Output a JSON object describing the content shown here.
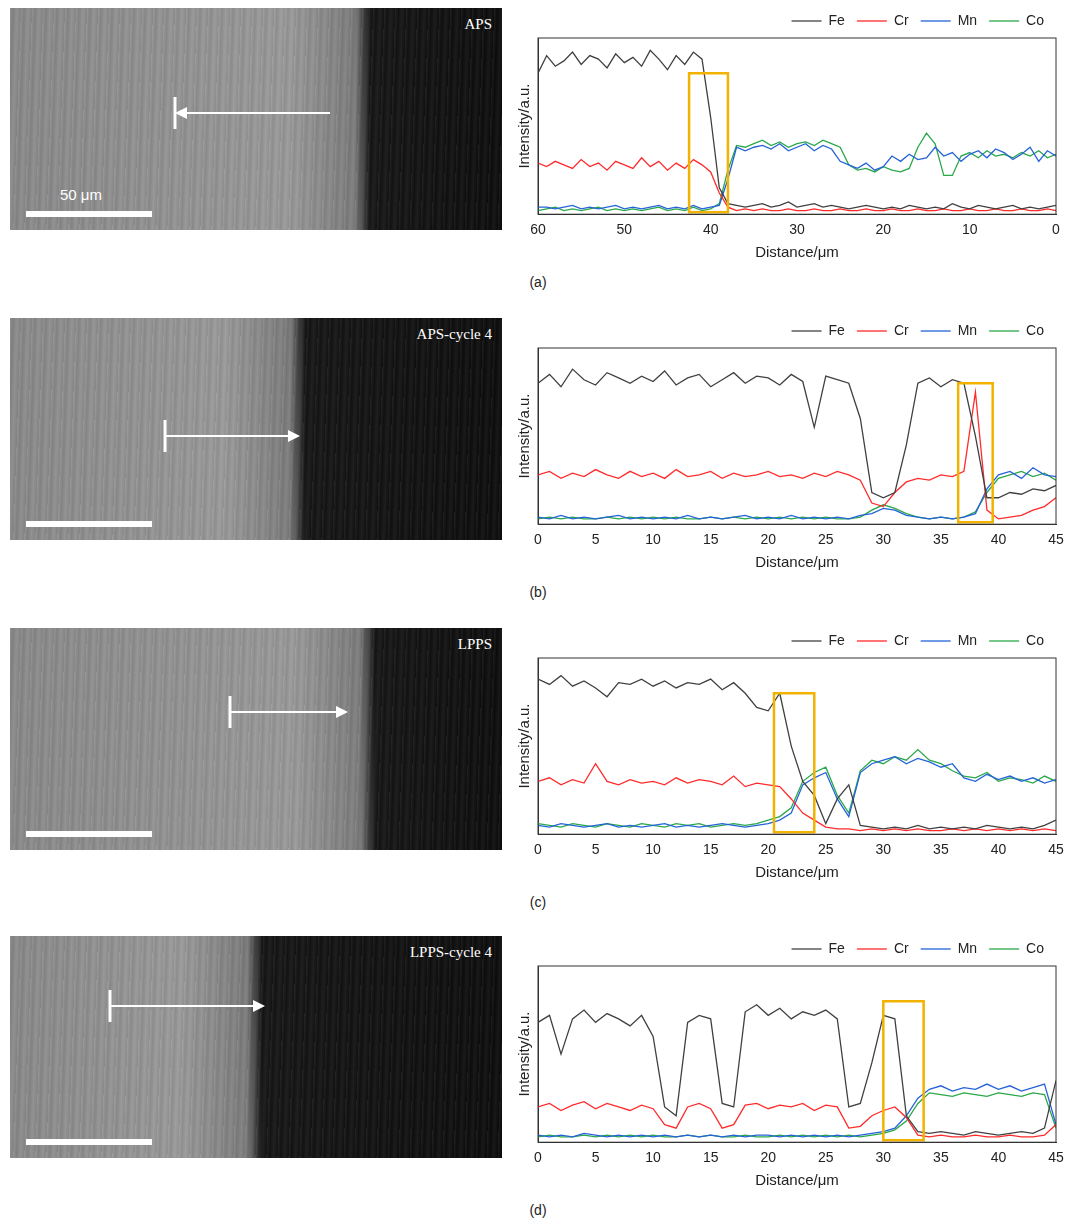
{
  "panel_labels": [
    "(a)",
    "(b)",
    "(c)",
    "(d)"
  ],
  "images": [
    {
      "caption": "APS",
      "scale_bar": "50 μm"
    },
    {
      "caption": "APS-cycle 4"
    },
    {
      "caption": "LPPS"
    },
    {
      "caption": "LPPS-cycle 4"
    }
  ],
  "chart_data": [
    {
      "type": "line",
      "x_label": "Distance/μm",
      "y_label": "Intensity/a.u.",
      "xlim": [
        60,
        0
      ],
      "xticks": [
        60,
        50,
        40,
        30,
        20,
        10,
        0
      ],
      "ylim": [
        0,
        100
      ],
      "grid": false,
      "legend": "top right",
      "tick_labels": "x",
      "highlight_x": [
        38,
        42.5
      ],
      "x": [
        0,
        1,
        2,
        3,
        4,
        5,
        6,
        7,
        8,
        9,
        10,
        11,
        12,
        13,
        14,
        15,
        16,
        17,
        18,
        19,
        20,
        21,
        22,
        23,
        24,
        25,
        26,
        27,
        28,
        29,
        30,
        31,
        32,
        33,
        34,
        35,
        36,
        37,
        38,
        39,
        40,
        41,
        42,
        43,
        44,
        45,
        46,
        47,
        48,
        49,
        50,
        51,
        52,
        53,
        54,
        55,
        56,
        57,
        58,
        59,
        60
      ],
      "series": [
        {
          "name": "Fe",
          "color": "#404040",
          "values": [
            5,
            4,
            3,
            4,
            3,
            5,
            4,
            3,
            4,
            5,
            3,
            4,
            6,
            3,
            4,
            3,
            4,
            5,
            3,
            4,
            3,
            4,
            5,
            4,
            3,
            4,
            5,
            4,
            6,
            5,
            4,
            7,
            5,
            4,
            6,
            5,
            4,
            5,
            6,
            15,
            55,
            88,
            92,
            85,
            90,
            82,
            88,
            93,
            84,
            89,
            86,
            91,
            83,
            88,
            90,
            85,
            92,
            87,
            84,
            90,
            80
          ]
        },
        {
          "name": "Cr",
          "color": "#ff2a2a",
          "values": [
            2,
            3,
            2,
            2,
            3,
            2,
            2,
            3,
            2,
            2,
            3,
            2,
            2,
            3,
            2,
            2,
            3,
            2,
            2,
            3,
            2,
            2,
            3,
            2,
            2,
            3,
            2,
            2,
            3,
            2,
            2,
            3,
            2,
            2,
            3,
            2,
            3,
            2,
            4,
            12,
            24,
            28,
            31,
            26,
            29,
            25,
            30,
            27,
            32,
            26,
            28,
            30,
            25,
            29,
            27,
            31,
            26,
            28,
            30,
            27,
            29
          ]
        },
        {
          "name": "Mn",
          "color": "#2563d9",
          "values": [
            33,
            36,
            30,
            38,
            34,
            31,
            35,
            37,
            32,
            36,
            34,
            30,
            35,
            33,
            38,
            32,
            31,
            34,
            30,
            33,
            27,
            25,
            29,
            26,
            28,
            30,
            37,
            39,
            36,
            40,
            38,
            36,
            40,
            37,
            39,
            38,
            36,
            38,
            20,
            5,
            4,
            3,
            5,
            3,
            4,
            3,
            5,
            4,
            3,
            4,
            3,
            5,
            4,
            3,
            4,
            3,
            5,
            4,
            3,
            4,
            4
          ]
        },
        {
          "name": "Co",
          "color": "#2aa84a",
          "values": [
            34,
            32,
            36,
            33,
            35,
            32,
            34,
            33,
            36,
            32,
            35,
            33,
            22,
            22,
            40,
            46,
            38,
            26,
            24,
            25,
            27,
            24,
            26,
            25,
            28,
            38,
            40,
            42,
            39,
            41,
            40,
            38,
            41,
            39,
            42,
            40,
            38,
            39,
            25,
            6,
            3,
            2,
            4,
            2,
            3,
            2,
            4,
            3,
            2,
            3,
            2,
            3,
            2,
            4,
            3,
            2,
            3,
            2,
            4,
            3,
            2
          ]
        }
      ]
    },
    {
      "type": "line",
      "x_label": "Distance/μm",
      "y_label": "Intensity/a.u.",
      "xlim": [
        0,
        45
      ],
      "xticks": [
        0,
        5,
        10,
        15,
        20,
        25,
        30,
        35,
        40,
        45
      ],
      "ylim": [
        0,
        100
      ],
      "grid": false,
      "legend": "top right",
      "tick_labels": "x",
      "highlight_x": [
        36.5,
        39.5
      ],
      "x": [
        0,
        1,
        2,
        3,
        4,
        5,
        6,
        7,
        8,
        9,
        10,
        11,
        12,
        13,
        14,
        15,
        16,
        17,
        18,
        19,
        20,
        21,
        22,
        23,
        24,
        25,
        26,
        27,
        28,
        29,
        30,
        31,
        32,
        33,
        34,
        35,
        36,
        37,
        38,
        39,
        40,
        41,
        42,
        43,
        44,
        45
      ],
      "series": [
        {
          "name": "Fe",
          "color": "#404040",
          "values": [
            80,
            85,
            78,
            88,
            82,
            79,
            86,
            83,
            80,
            84,
            81,
            87,
            79,
            83,
            85,
            78,
            82,
            86,
            80,
            84,
            83,
            79,
            85,
            81,
            55,
            84,
            82,
            80,
            60,
            18,
            15,
            18,
            45,
            80,
            83,
            78,
            82,
            80,
            50,
            15,
            15,
            18,
            17,
            20,
            19,
            22
          ]
        },
        {
          "name": "Cr",
          "color": "#ff2a2a",
          "values": [
            28,
            30,
            26,
            29,
            27,
            31,
            28,
            26,
            30,
            27,
            29,
            26,
            31,
            27,
            28,
            30,
            26,
            29,
            27,
            28,
            30,
            27,
            28,
            26,
            29,
            27,
            30,
            28,
            25,
            12,
            10,
            18,
            24,
            26,
            25,
            28,
            27,
            30,
            75,
            8,
            3,
            4,
            5,
            8,
            10,
            15
          ]
        },
        {
          "name": "Mn",
          "color": "#2563d9",
          "values": [
            4,
            3,
            5,
            3,
            4,
            3,
            4,
            5,
            3,
            4,
            3,
            4,
            3,
            5,
            3,
            4,
            3,
            4,
            5,
            3,
            4,
            3,
            5,
            3,
            4,
            3,
            4,
            3,
            5,
            6,
            9,
            8,
            5,
            4,
            3,
            4,
            3,
            4,
            6,
            20,
            28,
            30,
            26,
            32,
            28,
            27
          ]
        },
        {
          "name": "Co",
          "color": "#2aa84a",
          "values": [
            3,
            4,
            3,
            4,
            3,
            3,
            4,
            3,
            4,
            3,
            4,
            3,
            4,
            3,
            3,
            4,
            3,
            4,
            3,
            4,
            3,
            4,
            3,
            4,
            3,
            4,
            3,
            3,
            4,
            8,
            11,
            9,
            6,
            4,
            3,
            4,
            3,
            4,
            7,
            18,
            26,
            28,
            30,
            27,
            29,
            25
          ]
        }
      ]
    },
    {
      "type": "line",
      "x_label": "Distance/μm",
      "y_label": "Intensity/a.u.",
      "xlim": [
        0,
        45
      ],
      "xticks": [
        0,
        5,
        10,
        15,
        20,
        25,
        30,
        35,
        40,
        45
      ],
      "ylim": [
        0,
        100
      ],
      "grid": false,
      "legend": "top right",
      "tick_labels": "x",
      "highlight_x": [
        20.5,
        24
      ],
      "x": [
        0,
        1,
        2,
        3,
        4,
        5,
        6,
        7,
        8,
        9,
        10,
        11,
        12,
        13,
        14,
        15,
        16,
        17,
        18,
        19,
        20,
        21,
        22,
        23,
        24,
        25,
        26,
        27,
        28,
        29,
        30,
        31,
        32,
        33,
        34,
        35,
        36,
        37,
        38,
        39,
        40,
        41,
        42,
        43,
        44,
        45
      ],
      "series": [
        {
          "name": "Fe",
          "color": "#404040",
          "values": [
            88,
            85,
            90,
            84,
            87,
            83,
            78,
            86,
            85,
            88,
            84,
            87,
            83,
            86,
            85,
            88,
            82,
            86,
            80,
            72,
            70,
            80,
            50,
            30,
            22,
            6,
            20,
            28,
            5,
            4,
            3,
            4,
            3,
            5,
            3,
            4,
            3,
            4,
            3,
            5,
            4,
            3,
            4,
            3,
            5,
            8
          ]
        },
        {
          "name": "Cr",
          "color": "#ff2a2a",
          "values": [
            30,
            32,
            28,
            31,
            29,
            40,
            30,
            28,
            31,
            29,
            30,
            28,
            32,
            29,
            31,
            30,
            28,
            33,
            27,
            29,
            28,
            27,
            20,
            12,
            8,
            4,
            3,
            3,
            2,
            3,
            2,
            3,
            2,
            3,
            2,
            2,
            3,
            2,
            3,
            2,
            3,
            2,
            3,
            2,
            3,
            2
          ]
        },
        {
          "name": "Mn",
          "color": "#2563d9",
          "values": [
            5,
            4,
            6,
            5,
            4,
            5,
            6,
            4,
            5,
            4,
            5,
            6,
            4,
            5,
            4,
            5,
            6,
            5,
            4,
            5,
            6,
            8,
            12,
            28,
            32,
            35,
            20,
            10,
            35,
            40,
            42,
            44,
            40,
            43,
            41,
            38,
            40,
            32,
            30,
            34,
            31,
            33,
            30,
            32,
            29,
            31
          ]
        },
        {
          "name": "Co",
          "color": "#2aa84a",
          "values": [
            6,
            5,
            4,
            6,
            5,
            4,
            6,
            5,
            4,
            6,
            5,
            4,
            6,
            5,
            6,
            4,
            5,
            6,
            5,
            6,
            8,
            10,
            15,
            30,
            35,
            38,
            22,
            12,
            36,
            42,
            40,
            44,
            42,
            48,
            42,
            40,
            36,
            33,
            32,
            35,
            30,
            32,
            31,
            29,
            33,
            30
          ]
        }
      ]
    },
    {
      "type": "line",
      "x_label": "Distance/μm",
      "y_label": "Intensity/a.u.",
      "xlim": [
        0,
        45
      ],
      "xticks": [
        0,
        5,
        10,
        15,
        20,
        25,
        30,
        35,
        40,
        45
      ],
      "ylim": [
        0,
        100
      ],
      "grid": false,
      "legend": "top right",
      "tick_labels": "x",
      "highlight_x": [
        30,
        33.5
      ],
      "x": [
        0,
        1,
        2,
        3,
        4,
        5,
        6,
        7,
        8,
        9,
        10,
        11,
        12,
        13,
        14,
        15,
        16,
        17,
        18,
        19,
        20,
        21,
        22,
        23,
        24,
        25,
        26,
        27,
        28,
        29,
        30,
        31,
        32,
        33,
        34,
        35,
        36,
        37,
        38,
        39,
        40,
        41,
        42,
        43,
        44,
        45
      ],
      "series": [
        {
          "name": "Fe",
          "color": "#404040",
          "values": [
            68,
            72,
            50,
            70,
            75,
            68,
            73,
            70,
            66,
            72,
            60,
            20,
            15,
            68,
            72,
            70,
            22,
            20,
            74,
            78,
            72,
            76,
            70,
            74,
            72,
            75,
            70,
            20,
            22,
            45,
            72,
            70,
            15,
            6,
            5,
            6,
            5,
            4,
            6,
            5,
            4,
            5,
            6,
            5,
            8,
            35
          ]
        },
        {
          "name": "Cr",
          "color": "#ff2a2a",
          "values": [
            20,
            22,
            18,
            21,
            23,
            19,
            22,
            20,
            18,
            21,
            19,
            10,
            8,
            20,
            22,
            19,
            8,
            10,
            21,
            22,
            19,
            21,
            20,
            22,
            18,
            21,
            20,
            8,
            9,
            15,
            18,
            20,
            14,
            4,
            3,
            4,
            3,
            3,
            4,
            3,
            3,
            4,
            3,
            3,
            4,
            10
          ]
        },
        {
          "name": "Mn",
          "color": "#2563d9",
          "values": [
            4,
            3,
            4,
            3,
            5,
            4,
            3,
            4,
            3,
            4,
            3,
            4,
            3,
            4,
            3,
            4,
            3,
            4,
            3,
            4,
            4,
            3,
            4,
            3,
            4,
            3,
            4,
            3,
            4,
            5,
            6,
            8,
            15,
            25,
            30,
            32,
            29,
            31,
            30,
            33,
            30,
            32,
            29,
            31,
            33,
            10
          ]
        },
        {
          "name": "Co",
          "color": "#2aa84a",
          "values": [
            3,
            4,
            3,
            3,
            4,
            3,
            4,
            3,
            4,
            3,
            4,
            3,
            3,
            4,
            3,
            4,
            3,
            3,
            4,
            3,
            3,
            4,
            3,
            4,
            3,
            4,
            3,
            4,
            3,
            4,
            5,
            7,
            12,
            22,
            28,
            27,
            26,
            28,
            27,
            26,
            28,
            27,
            26,
            28,
            27,
            8
          ]
        }
      ]
    }
  ]
}
